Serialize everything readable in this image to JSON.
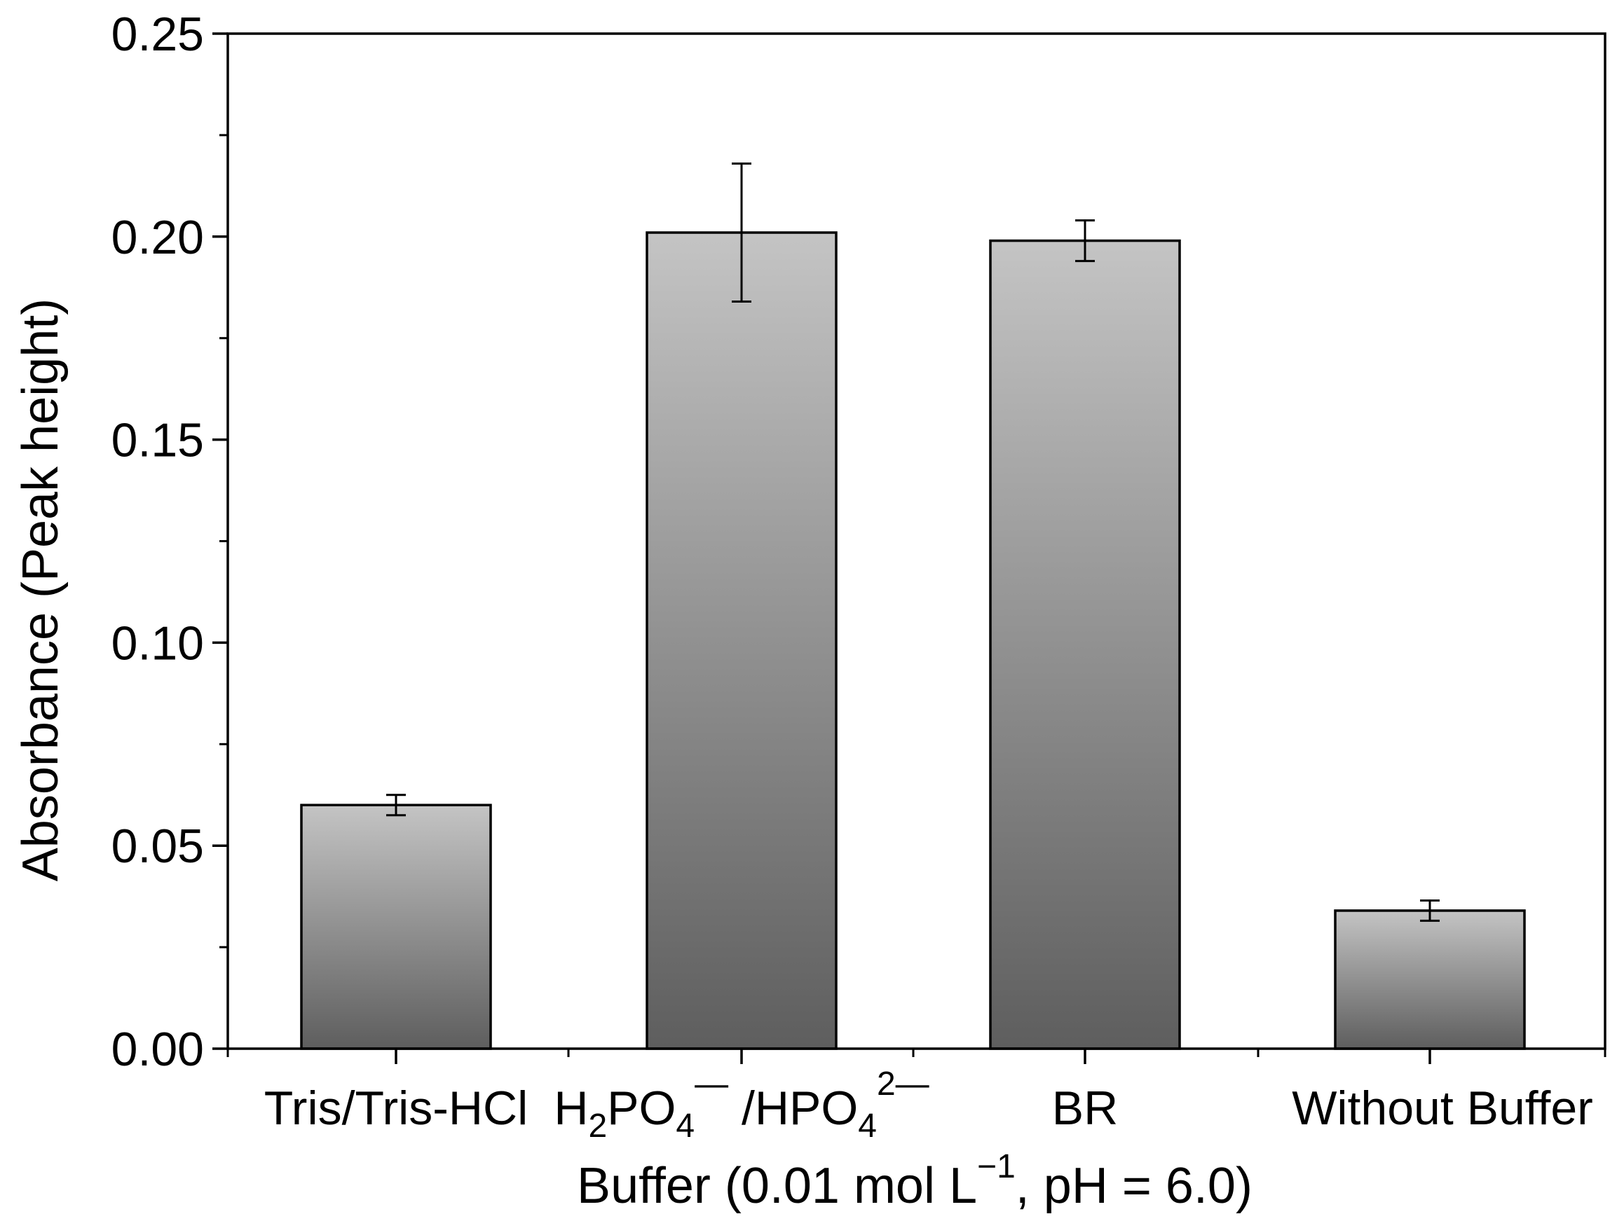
{
  "chart_data": {
    "type": "bar",
    "title": "",
    "xlabel": {
      "main": "Buffer (0.01 mol L",
      "sup": "−1",
      "tail": ", pH = 6.0)"
    },
    "ylabel": "Absorbance (Peak height)",
    "ylim": [
      0,
      0.25
    ],
    "yticks": [
      0.0,
      0.05,
      0.1,
      0.15,
      0.2,
      0.25
    ],
    "ytick_labels": [
      "0.00",
      "0.05",
      "0.10",
      "0.15",
      "0.20",
      "0.25"
    ],
    "categories": [
      "Tris/Tris-HCl",
      "H2PO4−/HPO42−",
      "BR",
      "Without Buffer"
    ],
    "category_labels": {
      "tris": "Tris/Tris-HCl",
      "phos": {
        "h": "H",
        "sub1": "2",
        "po": "PO",
        "sub2": "4",
        "sup1": "—",
        "mid": " /HPO",
        "sub3": "4",
        "sup2": "2—"
      },
      "br": "BR",
      "without": "Without Buffer"
    },
    "values": [
      0.06,
      0.201,
      0.199,
      0.034
    ],
    "errors": [
      0.0025,
      0.017,
      0.005,
      0.0025
    ],
    "bar_gradient": {
      "top": "#c4c4c4",
      "bottom": "#5e5e5e"
    },
    "axis_color": "#000000"
  }
}
